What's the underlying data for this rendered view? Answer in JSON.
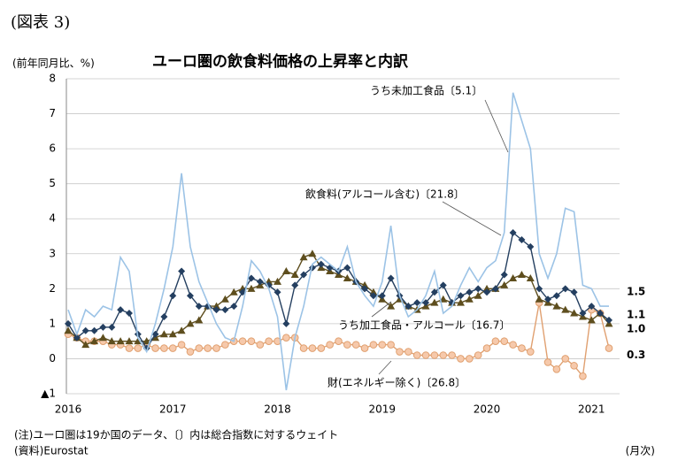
{
  "chart_data": {
    "type": "line",
    "figure_label": "(図表 3)",
    "title": "ユーロ圏の飲食料価格の上昇率と内訳",
    "y_label": "(前年同月比、%)",
    "x_label": "(月次)",
    "note": "(注)ユーロ圏は19か国のデータ、〔〕内は総合指数に対するウェイト",
    "source": "(資料)Eurostat",
    "categories": [
      "2016",
      null,
      null,
      null,
      null,
      null,
      null,
      null,
      null,
      null,
      null,
      null,
      "2017",
      null,
      null,
      null,
      null,
      null,
      null,
      null,
      null,
      null,
      null,
      null,
      "2018",
      null,
      null,
      null,
      null,
      null,
      null,
      null,
      null,
      null,
      null,
      null,
      "2019",
      null,
      null,
      null,
      null,
      null,
      null,
      null,
      null,
      null,
      null,
      null,
      "2020",
      null,
      null,
      null,
      null,
      null,
      null,
      null,
      null,
      null,
      null,
      null,
      "2021",
      null,
      null
    ],
    "ylim": [
      -1,
      8
    ],
    "yticks": [
      {
        "value": -1,
        "label": "▲1"
      },
      0,
      1,
      2,
      3,
      4,
      5,
      6,
      7,
      8
    ],
    "grid": true,
    "series": [
      {
        "name": "うち未加工食品〔5.1〕",
        "color": "#9cc3e6",
        "marker": "none",
        "end_label": "1.5",
        "values": [
          1.4,
          0.7,
          1.4,
          1.2,
          1.5,
          1.4,
          2.9,
          2.5,
          0.6,
          0.2,
          1.0,
          2.0,
          3.2,
          5.3,
          3.2,
          2.2,
          1.6,
          1.0,
          0.6,
          0.5,
          1.5,
          2.8,
          2.5,
          2.0,
          1.2,
          -0.9,
          0.6,
          1.5,
          2.7,
          2.9,
          2.7,
          2.5,
          3.2,
          2.2,
          1.8,
          1.5,
          2.2,
          3.8,
          1.8,
          1.2,
          1.4,
          1.8,
          2.5,
          1.3,
          1.5,
          2.1,
          2.6,
          2.2,
          2.6,
          2.8,
          3.6,
          7.6,
          6.8,
          6.0,
          3.0,
          2.3,
          3.0,
          4.3,
          4.2,
          2.1,
          2.0,
          1.5,
          1.5
        ]
      },
      {
        "name": "飲食料(アルコール含む)〔21.8〕",
        "color": "#243f60",
        "marker": "diamond",
        "end_label": "1.1",
        "values": [
          1.0,
          0.6,
          0.8,
          0.8,
          0.9,
          0.9,
          1.4,
          1.3,
          0.7,
          0.3,
          0.7,
          1.2,
          1.8,
          2.5,
          1.8,
          1.5,
          1.5,
          1.4,
          1.4,
          1.5,
          1.9,
          2.3,
          2.2,
          2.1,
          1.9,
          1.0,
          2.1,
          2.4,
          2.6,
          2.7,
          2.6,
          2.5,
          2.6,
          2.2,
          2.0,
          1.8,
          1.8,
          2.3,
          1.8,
          1.5,
          1.6,
          1.6,
          1.9,
          2.1,
          1.6,
          1.8,
          1.9,
          2.0,
          1.9,
          2.0,
          2.4,
          3.6,
          3.4,
          3.2,
          2.0,
          1.7,
          1.8,
          2.0,
          1.9,
          1.3,
          1.5,
          1.3,
          1.1
        ]
      },
      {
        "name": "うち加工食品・アルコール〔16.7〕",
        "color": "#5e4e1e",
        "marker": "triangle",
        "end_label": "1.0",
        "values": [
          0.8,
          0.6,
          0.4,
          0.5,
          0.6,
          0.5,
          0.5,
          0.5,
          0.5,
          0.5,
          0.6,
          0.7,
          0.7,
          0.8,
          1.0,
          1.1,
          1.5,
          1.5,
          1.7,
          1.9,
          2.0,
          2.0,
          2.1,
          2.2,
          2.2,
          2.5,
          2.4,
          2.9,
          3.0,
          2.6,
          2.5,
          2.4,
          2.3,
          2.2,
          2.1,
          1.9,
          1.7,
          1.5,
          1.7,
          1.5,
          1.4,
          1.5,
          1.6,
          1.7,
          1.6,
          1.6,
          1.7,
          1.8,
          2.0,
          2.0,
          2.1,
          2.3,
          2.4,
          2.3,
          1.7,
          1.6,
          1.5,
          1.4,
          1.3,
          1.2,
          1.1,
          1.3,
          1.0
        ]
      },
      {
        "name": "財(エネルギー除く)〔26.8〕",
        "color": "#e0a070",
        "marker": "circle",
        "end_label": "0.3",
        "values": [
          0.7,
          0.6,
          0.5,
          0.5,
          0.5,
          0.4,
          0.4,
          0.3,
          0.3,
          0.4,
          0.3,
          0.3,
          0.3,
          0.4,
          0.2,
          0.3,
          0.3,
          0.3,
          0.4,
          0.5,
          0.5,
          0.5,
          0.4,
          0.5,
          0.5,
          0.6,
          0.6,
          0.3,
          0.3,
          0.3,
          0.4,
          0.5,
          0.4,
          0.4,
          0.3,
          0.4,
          0.4,
          0.4,
          0.2,
          0.2,
          0.1,
          0.1,
          0.1,
          0.1,
          0.1,
          0.0,
          0.0,
          0.1,
          0.3,
          0.5,
          0.5,
          0.4,
          0.3,
          0.2,
          1.6,
          -0.1,
          -0.3,
          0.0,
          -0.2,
          -0.5,
          1.4,
          1.3,
          0.3
        ]
      }
    ]
  }
}
